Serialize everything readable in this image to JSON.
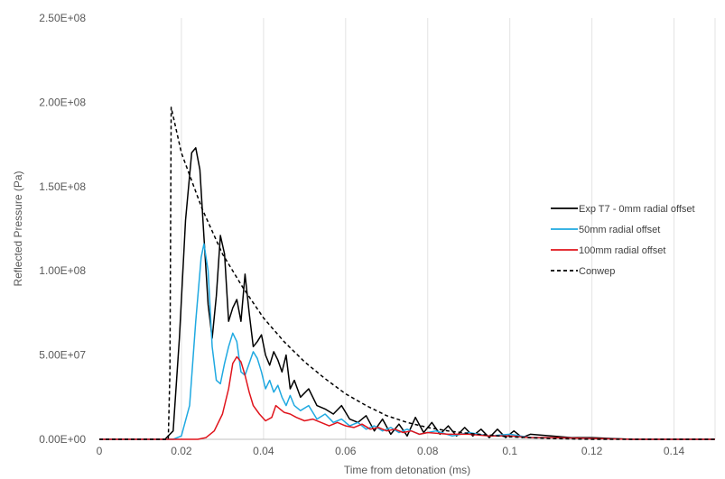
{
  "chart_data": {
    "type": "line",
    "xlabel": "Time from detonation (ms)",
    "ylabel": "Reflected Pressure (Pa)",
    "xlim": [
      0,
      0.15
    ],
    "ylim": [
      0,
      250000000
    ],
    "x_ticks": [
      "0",
      "0.02",
      "0.04",
      "0.06",
      "0.08",
      "0.1",
      "0.12",
      "0.14"
    ],
    "y_ticks": [
      "0.00E+00",
      "5.00E+07",
      "1.00E+08",
      "1.50E+08",
      "2.00E+08",
      "2.50E+08"
    ],
    "grid": "vertical",
    "legend_position": "right",
    "series": [
      {
        "name": "Exp T7 - 0mm radial offset",
        "color": "#000000",
        "style": "solid",
        "points": [
          [
            0,
            0
          ],
          [
            0.016,
            0
          ],
          [
            0.018,
            5000000
          ],
          [
            0.0195,
            60000000
          ],
          [
            0.021,
            130000000
          ],
          [
            0.0225,
            170000000
          ],
          [
            0.0235,
            173000000
          ],
          [
            0.0245,
            160000000
          ],
          [
            0.0255,
            120000000
          ],
          [
            0.0265,
            80000000
          ],
          [
            0.0275,
            60000000
          ],
          [
            0.0285,
            85000000
          ],
          [
            0.0295,
            121000000
          ],
          [
            0.0305,
            110000000
          ],
          [
            0.0315,
            70000000
          ],
          [
            0.0325,
            78000000
          ],
          [
            0.0335,
            83000000
          ],
          [
            0.0345,
            70000000
          ],
          [
            0.0355,
            98000000
          ],
          [
            0.0365,
            75000000
          ],
          [
            0.0375,
            55000000
          ],
          [
            0.0385,
            58000000
          ],
          [
            0.0395,
            62000000
          ],
          [
            0.0405,
            50000000
          ],
          [
            0.0415,
            44000000
          ],
          [
            0.0425,
            52000000
          ],
          [
            0.0435,
            47000000
          ],
          [
            0.0445,
            40000000
          ],
          [
            0.0455,
            50000000
          ],
          [
            0.0465,
            30000000
          ],
          [
            0.0475,
            35000000
          ],
          [
            0.049,
            25000000
          ],
          [
            0.051,
            30000000
          ],
          [
            0.053,
            20000000
          ],
          [
            0.055,
            18000000
          ],
          [
            0.057,
            15000000
          ],
          [
            0.059,
            20000000
          ],
          [
            0.061,
            12000000
          ],
          [
            0.063,
            10000000
          ],
          [
            0.065,
            14000000
          ],
          [
            0.067,
            5000000
          ],
          [
            0.069,
            12000000
          ],
          [
            0.071,
            3000000
          ],
          [
            0.073,
            9000000
          ],
          [
            0.075,
            2000000
          ],
          [
            0.077,
            13000000
          ],
          [
            0.079,
            4000000
          ],
          [
            0.081,
            10000000
          ],
          [
            0.083,
            3000000
          ],
          [
            0.085,
            8000000
          ],
          [
            0.087,
            2000000
          ],
          [
            0.089,
            7000000
          ],
          [
            0.091,
            2000000
          ],
          [
            0.093,
            6000000
          ],
          [
            0.095,
            1000000
          ],
          [
            0.097,
            6000000
          ],
          [
            0.099,
            1000000
          ],
          [
            0.101,
            5000000
          ],
          [
            0.103,
            1000000
          ],
          [
            0.105,
            3000000
          ],
          [
            0.11,
            2000000
          ],
          [
            0.115,
            1000000
          ],
          [
            0.12,
            1000000
          ],
          [
            0.125,
            500000
          ],
          [
            0.13,
            0
          ],
          [
            0.14,
            0
          ],
          [
            0.15,
            0
          ]
        ]
      },
      {
        "name": "50mm radial offset",
        "color": "#1fa9e1",
        "style": "solid",
        "points": [
          [
            0,
            0
          ],
          [
            0.018,
            0
          ],
          [
            0.02,
            2000000
          ],
          [
            0.022,
            20000000
          ],
          [
            0.0235,
            70000000
          ],
          [
            0.0248,
            108000000
          ],
          [
            0.0255,
            116000000
          ],
          [
            0.0265,
            100000000
          ],
          [
            0.0275,
            55000000
          ],
          [
            0.0285,
            35000000
          ],
          [
            0.0295,
            33000000
          ],
          [
            0.0305,
            45000000
          ],
          [
            0.0315,
            55000000
          ],
          [
            0.0325,
            63000000
          ],
          [
            0.0335,
            58000000
          ],
          [
            0.0345,
            40000000
          ],
          [
            0.0355,
            38000000
          ],
          [
            0.0365,
            45000000
          ],
          [
            0.0375,
            52000000
          ],
          [
            0.0385,
            48000000
          ],
          [
            0.0395,
            40000000
          ],
          [
            0.0405,
            30000000
          ],
          [
            0.0415,
            35000000
          ],
          [
            0.0425,
            28000000
          ],
          [
            0.0435,
            32000000
          ],
          [
            0.0445,
            25000000
          ],
          [
            0.0455,
            20000000
          ],
          [
            0.0465,
            26000000
          ],
          [
            0.0475,
            20000000
          ],
          [
            0.049,
            17000000
          ],
          [
            0.051,
            20000000
          ],
          [
            0.053,
            12000000
          ],
          [
            0.055,
            15000000
          ],
          [
            0.057,
            10000000
          ],
          [
            0.059,
            12000000
          ],
          [
            0.061,
            8000000
          ],
          [
            0.063,
            10000000
          ],
          [
            0.065,
            6000000
          ],
          [
            0.067,
            8000000
          ],
          [
            0.069,
            5000000
          ],
          [
            0.071,
            7000000
          ],
          [
            0.073,
            4000000
          ],
          [
            0.075,
            6000000
          ],
          [
            0.078,
            3000000
          ],
          [
            0.082,
            5000000
          ],
          [
            0.086,
            2000000
          ],
          [
            0.09,
            4000000
          ],
          [
            0.095,
            2000000
          ],
          [
            0.1,
            3000000
          ],
          [
            0.105,
            1000000
          ],
          [
            0.11,
            1000000
          ],
          [
            0.12,
            500000
          ],
          [
            0.13,
            0
          ],
          [
            0.15,
            0
          ]
        ]
      },
      {
        "name": "100mm radial offset",
        "color": "#e0141c",
        "style": "solid",
        "points": [
          [
            0,
            0
          ],
          [
            0.024,
            0
          ],
          [
            0.026,
            1000000
          ],
          [
            0.028,
            5000000
          ],
          [
            0.03,
            15000000
          ],
          [
            0.0315,
            30000000
          ],
          [
            0.0325,
            45000000
          ],
          [
            0.0335,
            49000000
          ],
          [
            0.0345,
            46000000
          ],
          [
            0.0355,
            38000000
          ],
          [
            0.0365,
            28000000
          ],
          [
            0.0375,
            20000000
          ],
          [
            0.039,
            15000000
          ],
          [
            0.0405,
            11000000
          ],
          [
            0.042,
            13000000
          ],
          [
            0.043,
            20000000
          ],
          [
            0.044,
            18000000
          ],
          [
            0.045,
            16000000
          ],
          [
            0.0465,
            15000000
          ],
          [
            0.048,
            13000000
          ],
          [
            0.05,
            11000000
          ],
          [
            0.052,
            12000000
          ],
          [
            0.054,
            10000000
          ],
          [
            0.056,
            8000000
          ],
          [
            0.058,
            10000000
          ],
          [
            0.06,
            8000000
          ],
          [
            0.062,
            7000000
          ],
          [
            0.064,
            9000000
          ],
          [
            0.066,
            6000000
          ],
          [
            0.068,
            7000000
          ],
          [
            0.07,
            5000000
          ],
          [
            0.072,
            6000000
          ],
          [
            0.074,
            4000000
          ],
          [
            0.076,
            5000000
          ],
          [
            0.078,
            3000000
          ],
          [
            0.08,
            4000000
          ],
          [
            0.085,
            3000000
          ],
          [
            0.09,
            3000000
          ],
          [
            0.095,
            2000000
          ],
          [
            0.1,
            2000000
          ],
          [
            0.105,
            1000000
          ],
          [
            0.11,
            1000000
          ],
          [
            0.12,
            500000
          ],
          [
            0.13,
            0
          ],
          [
            0.15,
            0
          ]
        ]
      },
      {
        "name": "Conwep",
        "color": "#000000",
        "style": "dashed",
        "points": [
          [
            0,
            0
          ],
          [
            0.0168,
            0
          ],
          [
            0.0172,
            40000000
          ],
          [
            0.0175,
            197000000
          ],
          [
            0.02,
            170000000
          ],
          [
            0.025,
            137000000
          ],
          [
            0.03,
            110000000
          ],
          [
            0.035,
            90000000
          ],
          [
            0.04,
            72000000
          ],
          [
            0.045,
            58000000
          ],
          [
            0.05,
            46000000
          ],
          [
            0.055,
            36000000
          ],
          [
            0.06,
            27000000
          ],
          [
            0.065,
            20000000
          ],
          [
            0.07,
            14000000
          ],
          [
            0.075,
            10000000
          ],
          [
            0.08,
            7000000
          ],
          [
            0.085,
            5000000
          ],
          [
            0.09,
            3500000
          ],
          [
            0.1,
            1500000
          ],
          [
            0.11,
            500000
          ],
          [
            0.12,
            0
          ],
          [
            0.15,
            0
          ]
        ]
      }
    ]
  }
}
